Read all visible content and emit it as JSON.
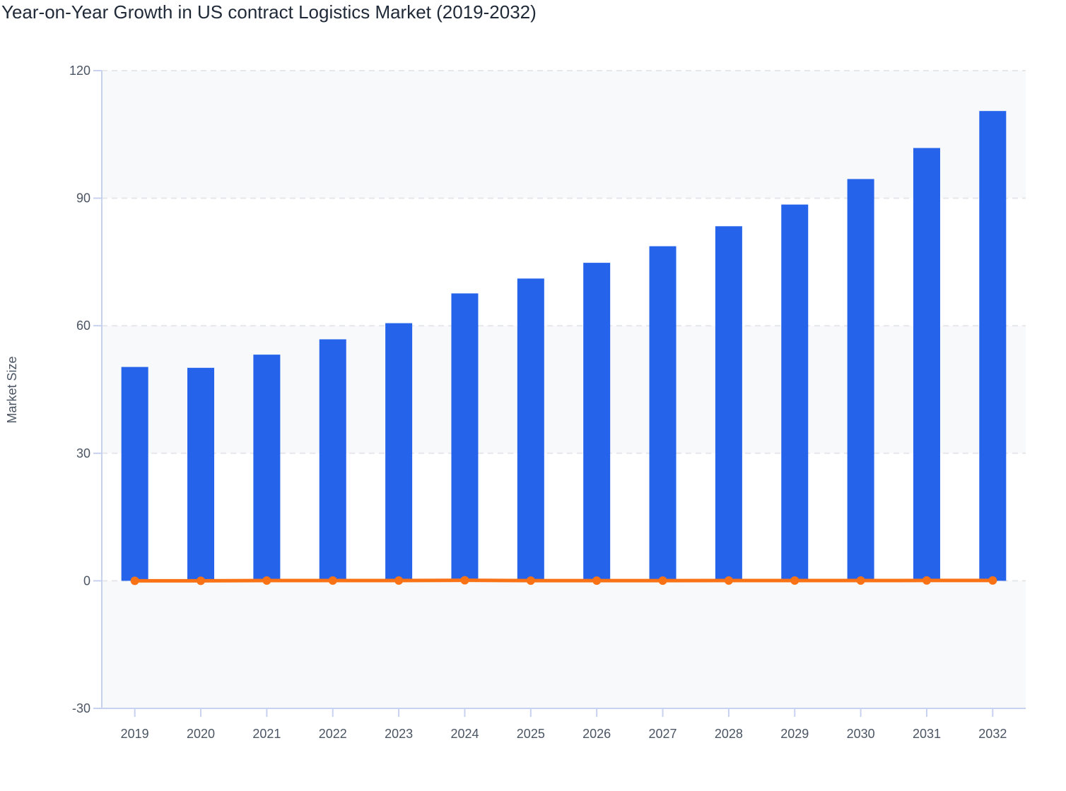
{
  "chart_data": {
    "type": "bar",
    "title": "Year-on-Year Growth in US contract Logistics Market (2019-2032)",
    "xlabel": "",
    "ylabel": "Market Size",
    "ylim": [
      -30,
      120
    ],
    "yticks": [
      -30,
      0,
      30,
      60,
      90,
      120
    ],
    "grid": true,
    "categories": [
      "2019",
      "2020",
      "2021",
      "2022",
      "2023",
      "2024",
      "2025",
      "2026",
      "2027",
      "2028",
      "2029",
      "2030",
      "2031",
      "2032"
    ],
    "series": [
      {
        "type": "bar",
        "color": "#2563eb",
        "values": [
          50.3,
          50.1,
          53.2,
          56.8,
          60.6,
          67.6,
          71.1,
          74.8,
          78.7,
          83.4,
          88.5,
          94.5,
          101.8,
          110.5
        ]
      },
      {
        "type": "line",
        "color": "#f97316",
        "values": [
          0,
          -0.004,
          0.06,
          0.07,
          0.07,
          0.12,
          0.05,
          0.05,
          0.05,
          0.06,
          0.06,
          0.07,
          0.08,
          0.09
        ]
      }
    ]
  }
}
